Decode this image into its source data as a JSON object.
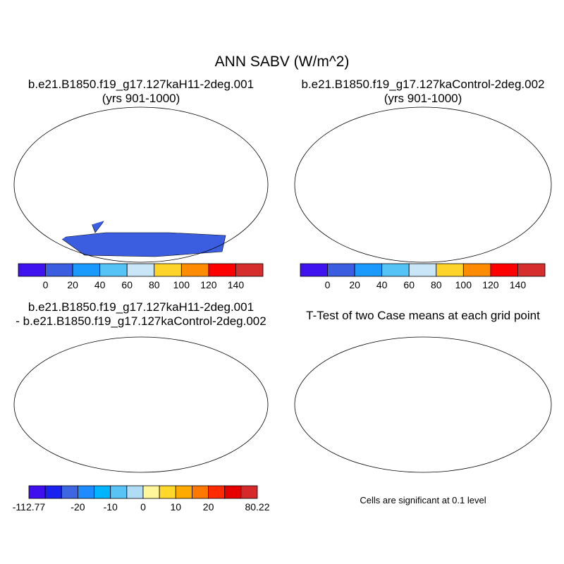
{
  "main_title": "ANN SABV (W/m^2)",
  "panels": [
    {
      "title_line1": "b.e21.B1850.f19_g17.127kaH11-2deg.001",
      "title_line2": "(yrs 901-1000)",
      "land_color": "#3b5ee0",
      "accent_color": "#d62d2d"
    },
    {
      "title_line1": "b.e21.B1850.f19_g17.127kaControl-2deg.002",
      "title_line2": "(yrs 901-1000)",
      "land_color": "#3b5ee0",
      "accent_color": "#d62d2d"
    },
    {
      "title_line1": "b.e21.B1850.f19_g17.127kaH11-2deg.001",
      "title_line2": "- b.e21.B1850.f19_g17.127kaControl-2deg.002",
      "land_color": "#b0dcf5",
      "accent_color": "#fff59a"
    },
    {
      "title_line1": "T-Test of two Case means at each grid point",
      "title_line2": "",
      "land_color": "#ff0000",
      "accent_color": "#ff0000"
    }
  ],
  "colorbar_abs": {
    "colors": [
      "#3f12f0",
      "#3b5ee0",
      "#1a9aff",
      "#55c3f5",
      "#c8e6f8",
      "#ffd42a",
      "#ff8c00",
      "#ff0000",
      "#d62d2d"
    ],
    "labels": [
      "0",
      "20",
      "40",
      "60",
      "80",
      "100",
      "120",
      "140"
    ]
  },
  "colorbar_diff": {
    "colors": [
      "#3f0ff0",
      "#1a22f0",
      "#3d66e0",
      "#1e8cff",
      "#00b4ff",
      "#5ac3f5",
      "#b0dcf5",
      "#fff59a",
      "#ffd82a",
      "#ffaa00",
      "#ff7800",
      "#ff2a00",
      "#e60000",
      "#d62a2a"
    ],
    "labels": [
      "-112.77",
      "-20",
      "-10",
      "0",
      "10",
      "20",
      "80.22"
    ]
  },
  "ttest_note": "Cells are significant at 0.1 level"
}
